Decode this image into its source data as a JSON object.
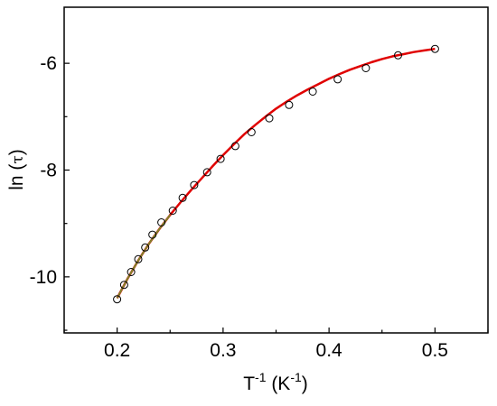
{
  "chart_data": {
    "type": "scatter",
    "xlabel": {
      "base": "T",
      "sup1": "-1",
      "mid": " (K",
      "sup2": "-1",
      "end": ")"
    },
    "ylabel": {
      "pre": "ln (",
      "sym": "τ",
      "post": ")"
    },
    "xlim": [
      0.15,
      0.55
    ],
    "ylim": [
      -11.05,
      -4.95
    ],
    "x_ticks": [
      0.2,
      0.3,
      0.4,
      0.5
    ],
    "x_tick_labels": [
      "0.2",
      "0.3",
      "0.4",
      "0.5"
    ],
    "y_ticks": [
      -10,
      -8,
      -6
    ],
    "y_tick_labels": [
      "-10",
      "-8",
      "-6"
    ],
    "grid": false,
    "colors": {
      "fit_line": "#e00000",
      "guide_line": "#7a8a2a",
      "marker": "#000000",
      "axis": "#000000"
    },
    "series": [
      {
        "marker": "open-circle",
        "x": [
          0.2,
          0.2066,
          0.2132,
          0.2199,
          0.2265,
          0.2333,
          0.2418,
          0.2525,
          0.2618,
          0.2727,
          0.2849,
          0.2976,
          0.3115,
          0.3268,
          0.3436,
          0.3623,
          0.3846,
          0.4082,
          0.4348,
          0.4651,
          0.5
        ],
        "y": [
          -10.42,
          -10.15,
          -9.91,
          -9.67,
          -9.45,
          -9.21,
          -8.98,
          -8.76,
          -8.52,
          -8.28,
          -8.04,
          -7.79,
          -7.55,
          -7.29,
          -7.03,
          -6.78,
          -6.53,
          -6.3,
          -6.09,
          -5.85,
          -5.73
        ]
      }
    ],
    "fit_curve": {
      "x": [
        0.2,
        0.21,
        0.22,
        0.23,
        0.24,
        0.25,
        0.26,
        0.27,
        0.28,
        0.29,
        0.3,
        0.31,
        0.32,
        0.33,
        0.34,
        0.35,
        0.36,
        0.37,
        0.38,
        0.39,
        0.4,
        0.41,
        0.42,
        0.43,
        0.44,
        0.45,
        0.46,
        0.47,
        0.48,
        0.49,
        0.5
      ],
      "y": [
        -10.4,
        -10.03,
        -9.69,
        -9.38,
        -9.1,
        -8.84,
        -8.6,
        -8.37,
        -8.15,
        -7.93,
        -7.72,
        -7.52,
        -7.33,
        -7.16,
        -7.0,
        -6.85,
        -6.72,
        -6.6,
        -6.49,
        -6.39,
        -6.29,
        -6.2,
        -6.12,
        -6.05,
        -5.98,
        -5.92,
        -5.87,
        -5.83,
        -5.79,
        -5.76,
        -5.73
      ]
    },
    "guide_line": {
      "x": [
        0.2,
        0.21,
        0.22,
        0.23,
        0.24,
        0.25
      ],
      "y": [
        -10.4,
        -10.03,
        -9.69,
        -9.38,
        -9.1,
        -8.84
      ]
    }
  }
}
